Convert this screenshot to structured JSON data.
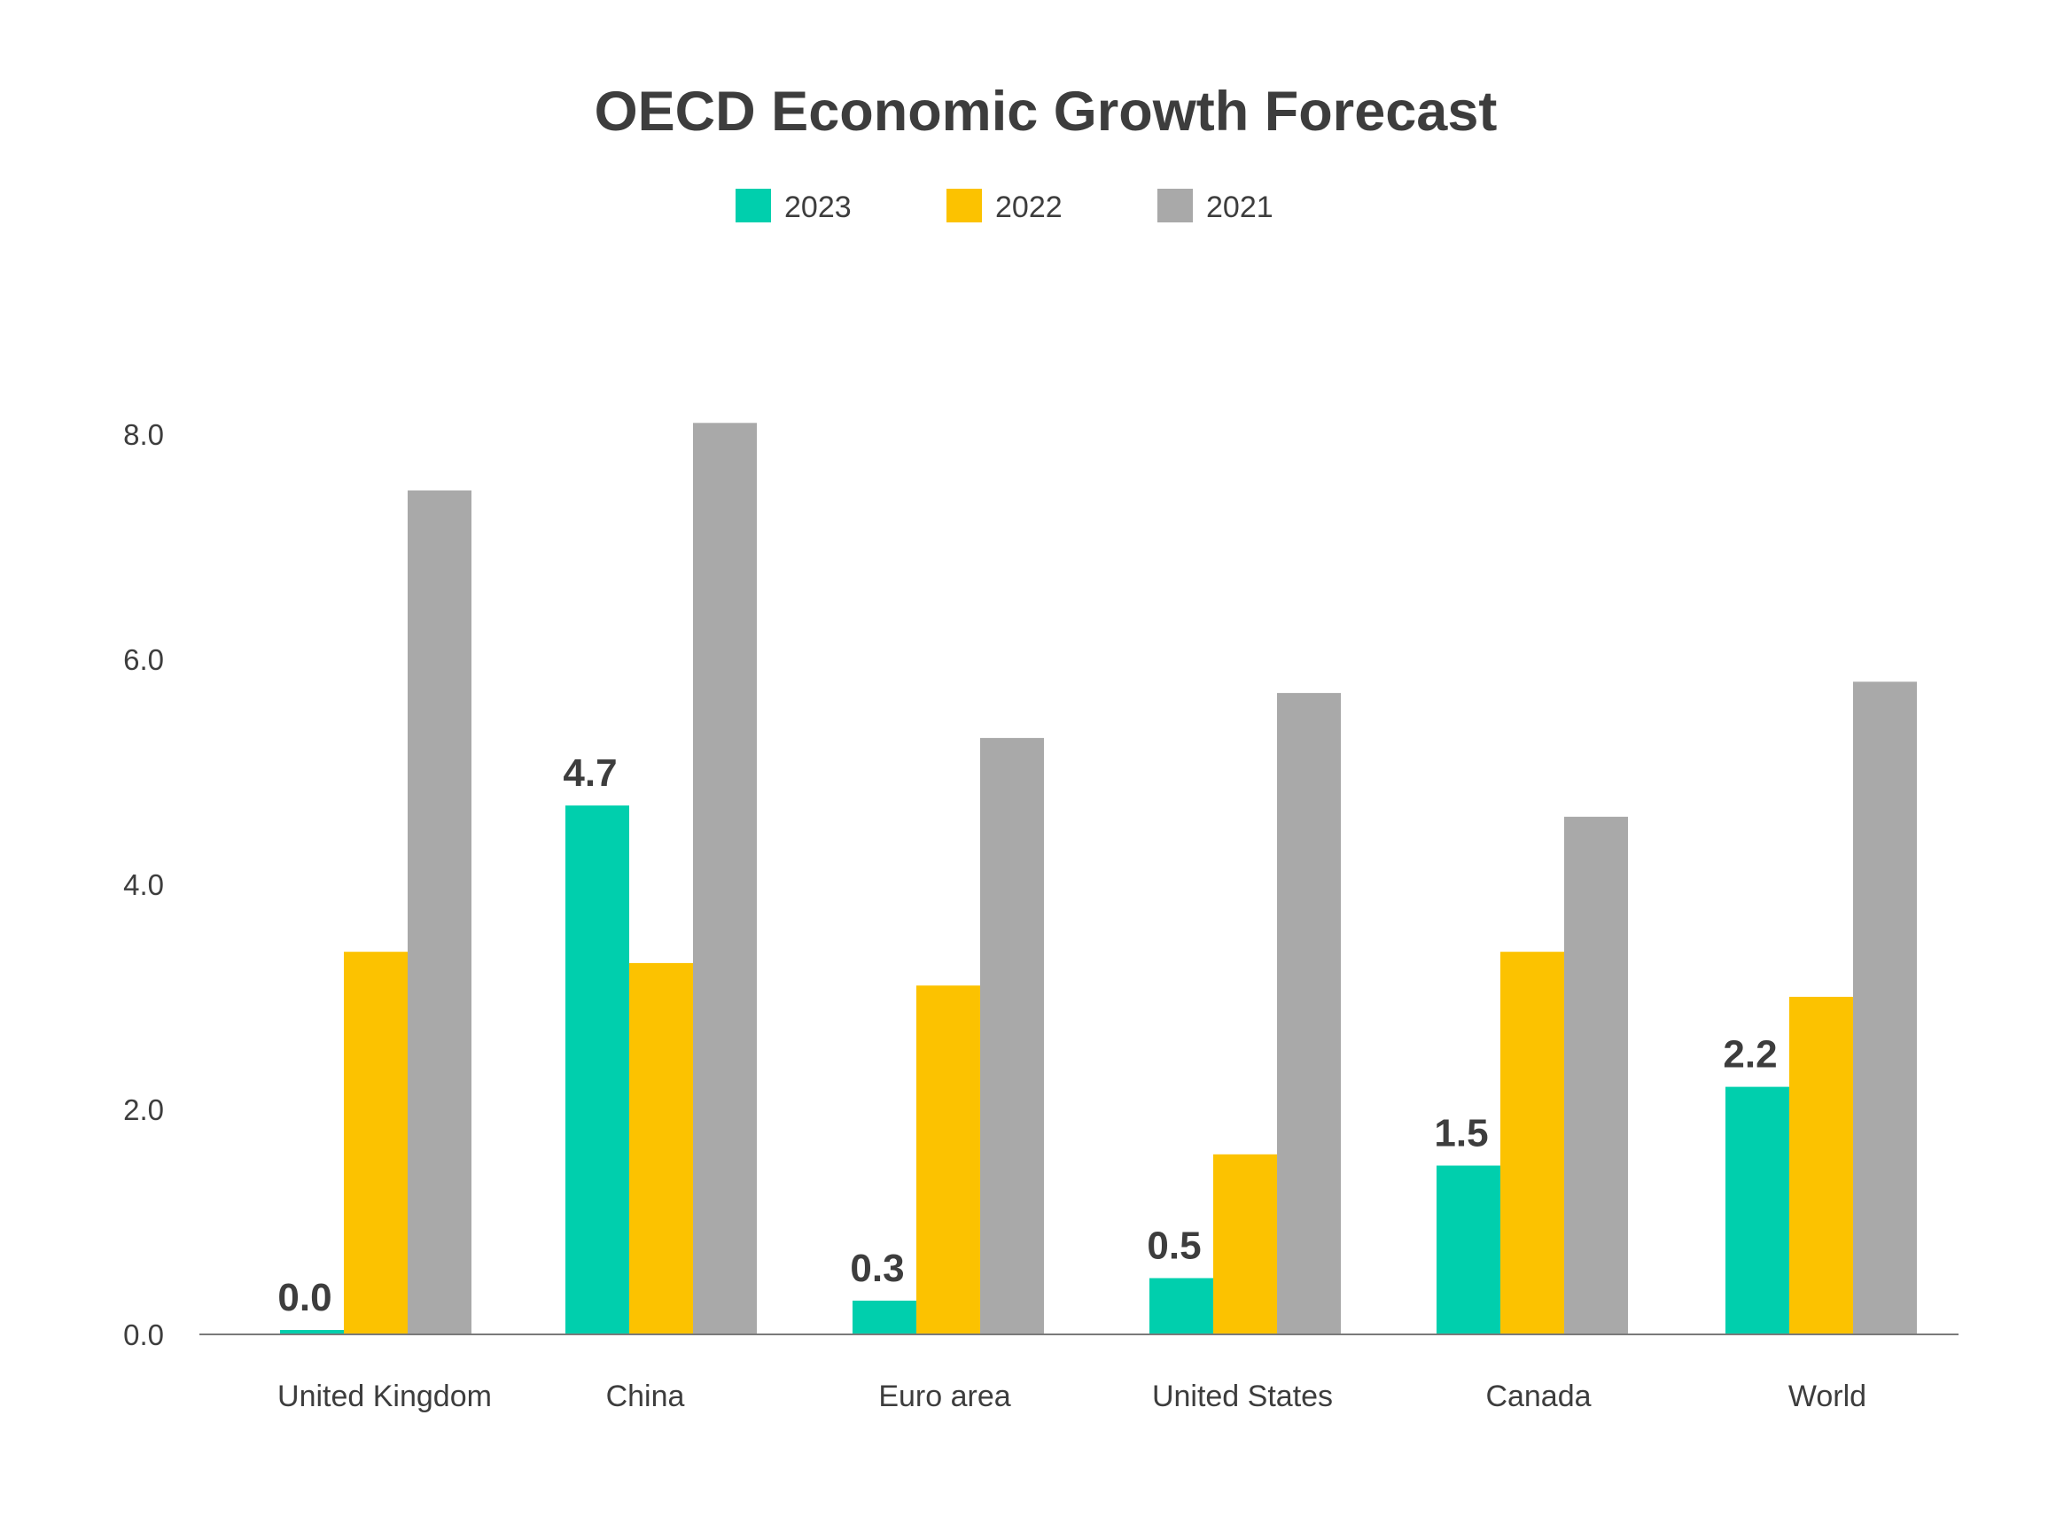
{
  "chart_data": {
    "type": "bar",
    "title": "OECD Economic Growth Forecast",
    "xlabel": "",
    "ylabel": "",
    "categories": [
      "United Kingdom",
      "China",
      "Euro area",
      "United States",
      "Canada",
      "World"
    ],
    "series": [
      {
        "name": "2023",
        "color": "#00cfad",
        "values": [
          0.0,
          4.7,
          0.3,
          0.5,
          1.5,
          2.2
        ],
        "data_labels": [
          "0.0",
          "4.7",
          "0.3",
          "0.5",
          "1.5",
          "2.2"
        ]
      },
      {
        "name": "2022",
        "color": "#fcc200",
        "values": [
          3.4,
          3.3,
          3.1,
          1.6,
          3.4,
          3.0
        ]
      },
      {
        "name": "2021",
        "color": "#a9a9a9",
        "values": [
          7.5,
          8.1,
          5.3,
          5.7,
          4.6,
          5.8
        ]
      }
    ],
    "ylim": [
      0,
      8
    ],
    "yticks": [
      "0.0",
      "2.0",
      "4.0",
      "6.0",
      "8.0"
    ],
    "grid": false,
    "legend": "top-center"
  }
}
